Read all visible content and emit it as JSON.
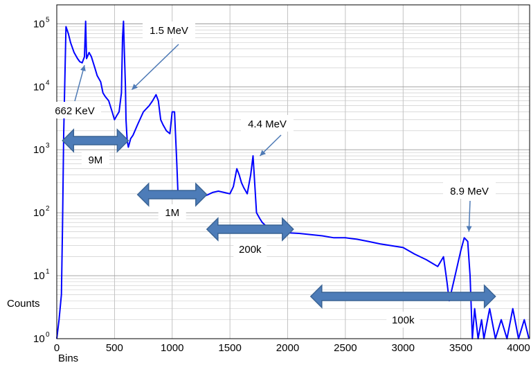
{
  "chart_data": {
    "type": "line",
    "title": "",
    "xlabel": "Bins",
    "ylabel": "Counts",
    "xlim": [
      0,
      4096
    ],
    "ylim": [
      1,
      200000
    ],
    "yscale": "log",
    "grid": true,
    "xticks": [
      "0",
      "500",
      "1000",
      "1500",
      "2000",
      "2500",
      "3000",
      "3500",
      "4000"
    ],
    "yticks": [
      {
        "base": "10",
        "exp": "0"
      },
      {
        "base": "10",
        "exp": "1"
      },
      {
        "base": "10",
        "exp": "2"
      },
      {
        "base": "10",
        "exp": "3"
      },
      {
        "base": "10",
        "exp": "4"
      },
      {
        "base": "10",
        "exp": "5"
      }
    ],
    "line_color": "#0000ff",
    "series": [
      {
        "x": [
          0,
          20,
          40,
          50,
          60,
          80,
          100,
          120,
          150,
          180,
          200,
          220,
          240,
          250,
          258,
          265,
          280,
          300,
          330,
          350,
          380,
          400,
          420,
          450,
          480,
          500,
          520,
          540,
          560,
          570,
          578,
          585,
          595,
          600,
          610,
          620,
          640,
          660,
          700,
          750,
          800,
          830,
          860,
          880,
          900,
          920,
          950,
          980,
          1000,
          1020,
          1040,
          1050,
          1060,
          1070,
          1080,
          1100,
          1150,
          1200,
          1250,
          1300,
          1350,
          1400,
          1450,
          1500,
          1530,
          1560,
          1580,
          1600,
          1620,
          1650,
          1680,
          1700,
          1730,
          1760,
          1780,
          1800,
          1820,
          1850,
          1900,
          1950,
          2000,
          2100,
          2200,
          2300,
          2400,
          2500,
          2600,
          2700,
          2800,
          2900,
          3000,
          3100,
          3200,
          3300,
          3350,
          3380,
          3400,
          3450,
          3500,
          3530,
          3560,
          3580,
          3600,
          3620,
          3650,
          3680,
          3700,
          3750,
          3800,
          3850,
          3900,
          3950,
          4000,
          4050,
          4090
        ],
        "y": [
          1,
          2,
          5,
          60,
          1800,
          90000,
          70000,
          50000,
          35000,
          28000,
          25000,
          24000,
          30000,
          110000,
          28000,
          30000,
          35000,
          30000,
          20000,
          15000,
          12000,
          8000,
          7000,
          6000,
          4000,
          3000,
          3500,
          4000,
          8000,
          60000,
          110000,
          40000,
          10000,
          3000,
          1400,
          1100,
          1500,
          1700,
          2500,
          4000,
          5000,
          6000,
          7500,
          6000,
          3000,
          2500,
          2000,
          1800,
          4000,
          4000,
          600,
          200,
          180,
          170,
          180,
          190,
          190,
          180,
          175,
          190,
          210,
          220,
          210,
          200,
          260,
          500,
          400,
          300,
          250,
          200,
          400,
          800,
          100,
          80,
          70,
          65,
          60,
          55,
          50,
          50,
          48,
          47,
          45,
          43,
          40,
          40,
          38,
          35,
          32,
          30,
          28,
          22,
          18,
          14,
          20,
          8,
          4,
          10,
          25,
          40,
          35,
          10,
          1,
          3,
          1,
          2,
          1,
          3,
          1,
          2,
          1,
          3,
          1,
          2,
          1
        ]
      }
    ],
    "annotations": [
      {
        "text": "1.5 MeV",
        "points_to": [
          650,
          9000
        ]
      },
      {
        "text": "662 KeV",
        "points_to": [
          240,
          22000
        ]
      },
      {
        "text": "4.4 MeV",
        "points_to": [
          1760,
          800
        ]
      },
      {
        "text": "8.9 MeV",
        "points_to": [
          3570,
          50
        ]
      }
    ],
    "range_arrows": [
      {
        "label": "9M",
        "from": 50,
        "to": 620
      },
      {
        "label": "1M",
        "from": 700,
        "to": 1300
      },
      {
        "label": "200k",
        "from": 1300,
        "to": 2050
      },
      {
        "label": "100k",
        "from": 2200,
        "to": 3800
      }
    ]
  }
}
